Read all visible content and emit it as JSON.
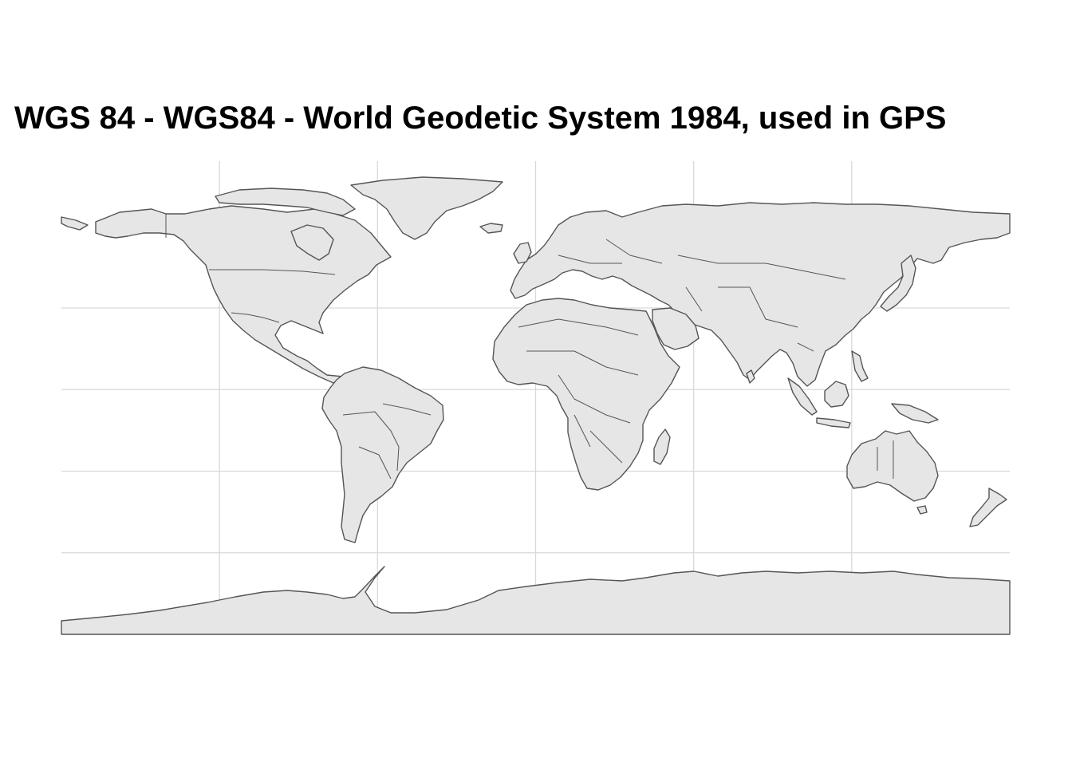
{
  "title": "WGS 84 - WGS84 - World Geodetic System 1984, used in GPS",
  "map": {
    "projection": "equirectangular (longitude/latitude, WGS 84)",
    "extent": {
      "lon": [
        -180,
        180
      ],
      "lat": [
        -90,
        84
      ]
    },
    "graticule_lon": [
      -120,
      -60,
      0,
      60,
      120
    ],
    "graticule_lat": [
      -60,
      -30,
      0,
      30
    ],
    "axis_labels_shown": false,
    "colors": {
      "land_fill": "#e6e6e6",
      "country_border": "#555555",
      "graticule": "#d9d9d9",
      "background": "#ffffff"
    }
  }
}
